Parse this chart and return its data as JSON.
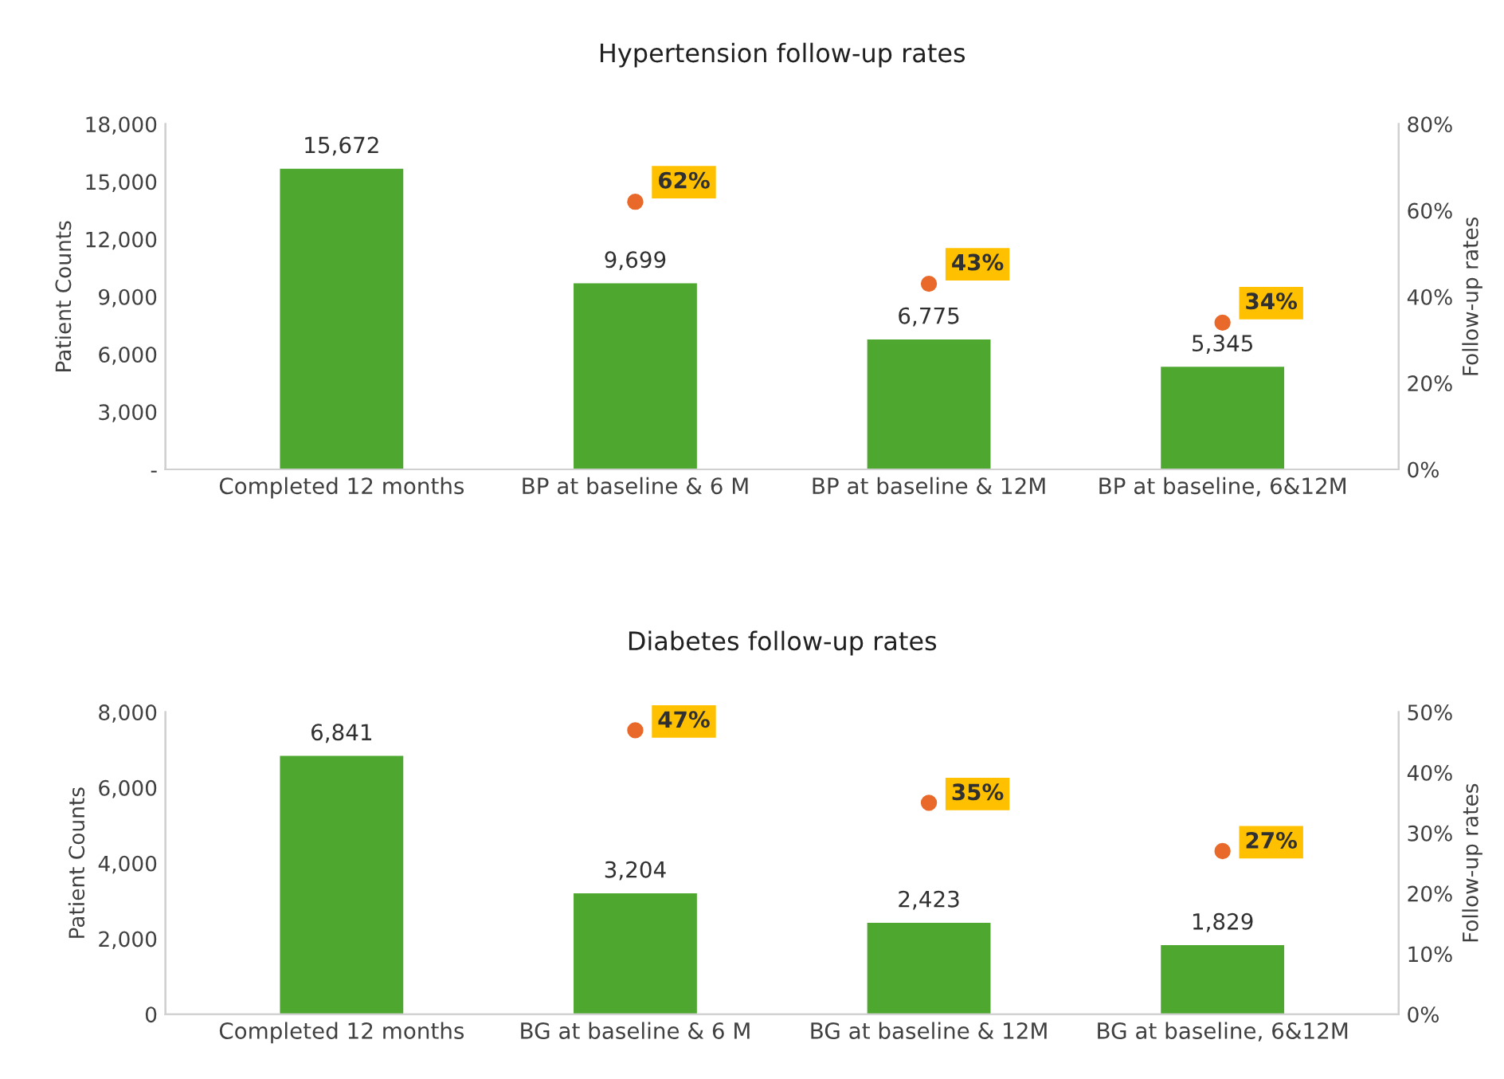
{
  "chart_data": [
    {
      "type": "bar",
      "title": "Hypertension follow-up rates",
      "ylabel": "Patient Counts",
      "y2label": "Follow-up rates",
      "categories": [
        "Completed 12 months",
        "BP at baseline & 6 M",
        "BP at baseline & 12M",
        "BP at baseline, 6&12M"
      ],
      "series": [
        {
          "color": "#4ea72e",
          "values": [
            15672,
            9699,
            6775,
            5345
          ],
          "value_labels": [
            "15,672",
            "9,699",
            "6,775",
            "5,345"
          ]
        },
        {
          "type": "scatter",
          "axis": "y2",
          "color": "#e8692a",
          "values": [
            null,
            62,
            43,
            34
          ],
          "value_labels": [
            null,
            "62%",
            "43%",
            "34%"
          ]
        }
      ],
      "ylim": [
        0,
        18000
      ],
      "yticks": [
        {
          "value": 0,
          "label": "-"
        },
        {
          "value": 3000,
          "label": "3,000"
        },
        {
          "value": 6000,
          "label": "6,000"
        },
        {
          "value": 9000,
          "label": "9,000"
        },
        {
          "value": 12000,
          "label": "12,000"
        },
        {
          "value": 15000,
          "label": "15,000"
        },
        {
          "value": 18000,
          "label": "18,000"
        }
      ],
      "y2lim": [
        0,
        80
      ],
      "y2ticks": [
        {
          "value": 0,
          "label": "0%"
        },
        {
          "value": 20,
          "label": "20%"
        },
        {
          "value": 40,
          "label": "40%"
        },
        {
          "value": 60,
          "label": "60%"
        },
        {
          "value": 80,
          "label": "80%"
        }
      ],
      "marker": "circle",
      "grid": false
    },
    {
      "type": "bar",
      "title": "Diabetes follow-up rates",
      "ylabel": "Patient Counts",
      "y2label": "Follow-up rates",
      "categories": [
        "Completed 12 months",
        "BG at baseline & 6 M",
        "BG at baseline & 12M",
        "BG at baseline, 6&12M"
      ],
      "series": [
        {
          "color": "#4ea72e",
          "values": [
            6841,
            3204,
            2423,
            1829
          ],
          "value_labels": [
            "6,841",
            "3,204",
            "2,423",
            "1,829"
          ]
        },
        {
          "type": "scatter",
          "axis": "y2",
          "color": "#e8692a",
          "values": [
            null,
            47,
            35,
            27
          ],
          "value_labels": [
            null,
            "47%",
            "35%",
            "27%"
          ]
        }
      ],
      "ylim": [
        0,
        8000
      ],
      "yticks": [
        {
          "value": 0,
          "label": "0"
        },
        {
          "value": 2000,
          "label": "2,000"
        },
        {
          "value": 4000,
          "label": "4,000"
        },
        {
          "value": 6000,
          "label": "6,000"
        },
        {
          "value": 8000,
          "label": "8,000"
        }
      ],
      "y2lim": [
        0,
        50
      ],
      "y2ticks": [
        {
          "value": 0,
          "label": "0%"
        },
        {
          "value": 10,
          "label": "10%"
        },
        {
          "value": 20,
          "label": "20%"
        },
        {
          "value": 30,
          "label": "30%"
        },
        {
          "value": 40,
          "label": "40%"
        },
        {
          "value": 50,
          "label": "50%"
        }
      ],
      "marker": "circle",
      "grid": false
    }
  ]
}
